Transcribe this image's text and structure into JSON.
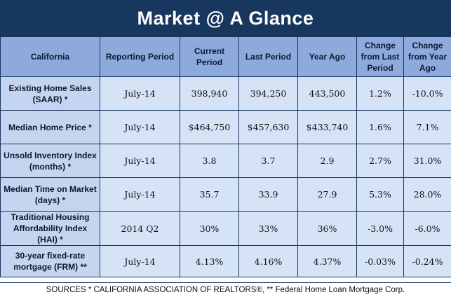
{
  "title": "Market @ A Glance",
  "headers": {
    "region": "California",
    "reporting_period": "Reporting Period",
    "current_period": "Current Period",
    "last_period": "Last Period",
    "year_ago": "Year Ago",
    "change_last": "Change from Last Period",
    "change_year": "Change from Year Ago"
  },
  "rows": [
    {
      "label": "Existing Home Sales (SAAR) *",
      "period": "July-14",
      "current": "398,940",
      "last": "394,250",
      "year_ago": "443,500",
      "change_last": "1.2%",
      "change_year": "-10.0%"
    },
    {
      "label": "Median Home Price *",
      "period": "July-14",
      "current": "$464,750",
      "last": "$457,630",
      "year_ago": "$433,740",
      "change_last": "1.6%",
      "change_year": "7.1%"
    },
    {
      "label": "Unsold Inventory Index (months) *",
      "period": "July-14",
      "current": "3.8",
      "last": "3.7",
      "year_ago": "2.9",
      "change_last": "2.7%",
      "change_year": "31.0%"
    },
    {
      "label": "Median Time on Market (days) *",
      "period": "July-14",
      "current": "35.7",
      "last": "33.9",
      "year_ago": "27.9",
      "change_last": "5.3%",
      "change_year": "28.0%"
    },
    {
      "label": "Traditional Housing Affordability Index (HAI) *",
      "period": "2014 Q2",
      "current": "30%",
      "last": "33%",
      "year_ago": "36%",
      "change_last": "-3.0%",
      "change_year": "-6.0%"
    },
    {
      "label": "30-year fixed-rate mortgage (FRM) **",
      "period": "July-14",
      "current": "4.13%",
      "last": "4.16%",
      "year_ago": "4.37%",
      "change_last": "-0.03%",
      "change_year": "-0.24%"
    }
  ],
  "sources": "SOURCES * CALIFORNIA ASSOCIATION OF REALTORS®, ** Federal Home Loan Mortgage Corp.",
  "colors": {
    "title_bg": "#17375e",
    "header_bg": "#8eaadc",
    "row_label_bg": "#c5d4ef",
    "cell_bg": "#d6e3f7"
  }
}
